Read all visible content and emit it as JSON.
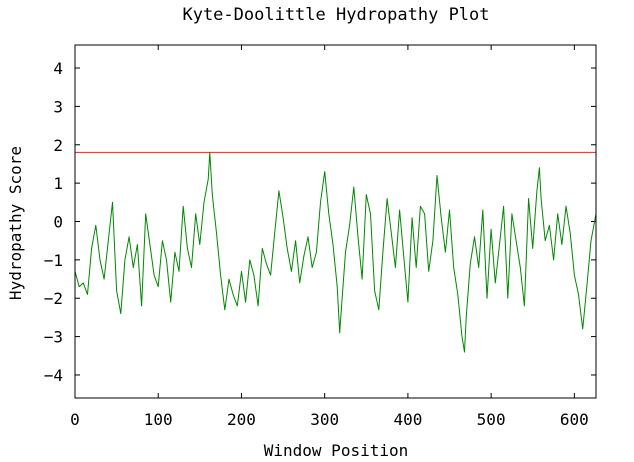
{
  "chart_data": {
    "type": "line",
    "title": "Kyte-Doolittle Hydropathy Plot",
    "xlabel": "Window Position",
    "ylabel": "Hydropathy Score",
    "xlim": [
      0,
      626
    ],
    "ylim": [
      -4.6,
      4.6
    ],
    "x_ticks": [
      0,
      100,
      200,
      300,
      400,
      500,
      600
    ],
    "y_ticks": [
      -4,
      -3,
      -2,
      -1,
      0,
      1,
      2,
      3,
      4
    ],
    "grid": false,
    "threshold": {
      "value": 1.8,
      "color": "#cc3333"
    },
    "series": [
      {
        "color": "#008800",
        "x": [
          0,
          5,
          10,
          15,
          20,
          25,
          30,
          35,
          40,
          45,
          50,
          55,
          60,
          65,
          70,
          75,
          80,
          85,
          90,
          95,
          100,
          105,
          110,
          115,
          120,
          125,
          130,
          135,
          140,
          145,
          150,
          155,
          160,
          162,
          165,
          170,
          175,
          180,
          185,
          190,
          195,
          200,
          205,
          210,
          215,
          220,
          225,
          230,
          235,
          240,
          245,
          250,
          255,
          260,
          265,
          270,
          275,
          280,
          285,
          290,
          295,
          300,
          305,
          310,
          315,
          318,
          320,
          325,
          330,
          335,
          340,
          345,
          350,
          355,
          360,
          365,
          370,
          375,
          380,
          385,
          390,
          395,
          400,
          405,
          410,
          415,
          420,
          425,
          430,
          435,
          440,
          445,
          450,
          455,
          460,
          465,
          468,
          470,
          475,
          480,
          485,
          490,
          495,
          500,
          505,
          510,
          515,
          520,
          525,
          530,
          535,
          540,
          545,
          550,
          555,
          558,
          560,
          565,
          570,
          575,
          580,
          585,
          590,
          595,
          600,
          605,
          610,
          615,
          620,
          626
        ],
        "y": [
          -1.3,
          -1.7,
          -1.6,
          -1.9,
          -0.7,
          -0.1,
          -1.0,
          -1.5,
          -0.5,
          0.5,
          -1.8,
          -2.4,
          -1.0,
          -0.4,
          -1.2,
          -0.6,
          -2.2,
          0.2,
          -0.6,
          -1.4,
          -1.7,
          -0.5,
          -1.0,
          -2.1,
          -0.8,
          -1.3,
          0.4,
          -0.7,
          -1.2,
          0.2,
          -0.6,
          0.5,
          1.1,
          1.8,
          0.7,
          -0.3,
          -1.4,
          -2.3,
          -1.5,
          -1.9,
          -2.2,
          -1.3,
          -2.1,
          -1.0,
          -1.4,
          -2.2,
          -0.7,
          -1.1,
          -1.4,
          -0.3,
          0.8,
          0.1,
          -0.7,
          -1.3,
          -0.5,
          -1.6,
          -0.9,
          -0.4,
          -1.2,
          -0.8,
          0.5,
          1.3,
          0.2,
          -0.6,
          -1.7,
          -2.9,
          -2.3,
          -0.8,
          -0.1,
          0.9,
          -0.4,
          -1.5,
          0.7,
          0.2,
          -1.8,
          -2.3,
          -0.8,
          0.6,
          -0.3,
          -1.2,
          0.3,
          -0.9,
          -2.1,
          0.1,
          -1.2,
          0.4,
          0.2,
          -1.3,
          -0.5,
          1.2,
          0.1,
          -0.8,
          0.3,
          -1.2,
          -1.9,
          -3.0,
          -3.4,
          -2.5,
          -1.1,
          -0.4,
          -1.2,
          0.3,
          -2.0,
          -0.2,
          -1.6,
          -0.6,
          0.4,
          -2.0,
          0.2,
          -0.5,
          -1.2,
          -2.2,
          0.6,
          -0.7,
          0.8,
          1.4,
          0.6,
          -0.5,
          -0.1,
          -1.0,
          0.2,
          -0.6,
          0.4,
          -0.3,
          -1.4,
          -1.9,
          -2.8,
          -1.7,
          -0.5,
          0.2
        ]
      }
    ]
  }
}
